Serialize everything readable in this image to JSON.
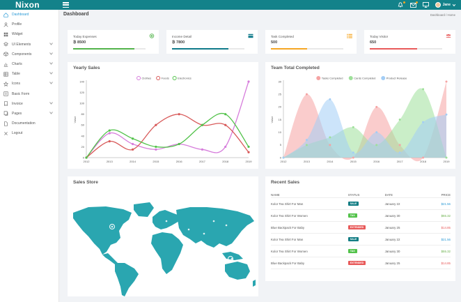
{
  "app": {
    "logo": "Nixon",
    "user_name": "Jane"
  },
  "header": {
    "title": "Dashboard",
    "breadcrumb": "Dashboard / Home"
  },
  "sidebar": {
    "items": [
      {
        "label": "Dashboard",
        "icon": "home-icon",
        "active": true,
        "chevron": false
      },
      {
        "label": "Profile",
        "icon": "user-icon",
        "active": false,
        "chevron": false
      },
      {
        "label": "Widget",
        "icon": "grid-icon",
        "active": false,
        "chevron": false
      },
      {
        "label": "UI Elements",
        "icon": "layers-icon",
        "active": false,
        "chevron": true
      },
      {
        "label": "Components",
        "icon": "cube-icon",
        "active": false,
        "chevron": true
      },
      {
        "label": "Charts",
        "icon": "chart-icon",
        "active": false,
        "chevron": true
      },
      {
        "label": "Table",
        "icon": "table-icon",
        "active": false,
        "chevron": true
      },
      {
        "label": "Icons",
        "icon": "star-icon",
        "active": false,
        "chevron": true
      },
      {
        "label": "Basic Form",
        "icon": "form-icon",
        "active": false,
        "chevron": false
      },
      {
        "label": "Invoice",
        "icon": "invoice-icon",
        "active": false,
        "chevron": true
      },
      {
        "label": "Pages",
        "icon": "pages-icon",
        "active": false,
        "chevron": true
      },
      {
        "label": "Documentation",
        "icon": "doc-icon",
        "active": false,
        "chevron": false
      },
      {
        "label": "Logout",
        "icon": "logout-icon",
        "active": false,
        "chevron": false
      }
    ]
  },
  "stats": [
    {
      "label": "Today Expenses",
      "value": "₿ 8500",
      "icon": "target-icon",
      "color": "#52b34b",
      "progress": 0.85
    },
    {
      "label": "Income Detail",
      "value": "₿ 7800",
      "icon": "wallet-icon",
      "color": "#0f7a8a",
      "progress": 0.78
    },
    {
      "label": "Task Completed",
      "value": "500",
      "icon": "list-icon",
      "color": "#f5a623",
      "progress": 0.5
    },
    {
      "label": "Today Visitor",
      "value": "650",
      "icon": "users-icon",
      "color": "#e85a5a",
      "progress": 0.65
    }
  ],
  "chart_data": [
    {
      "type": "line",
      "title": "Yearly Sales",
      "ylabel": "Value",
      "x": [
        "2012",
        "2013",
        "2014",
        "2015",
        "2016",
        "2017",
        "2018",
        "2019"
      ],
      "yticks": [
        "0",
        "20",
        "40",
        "60",
        "80",
        "100",
        "120",
        "140"
      ],
      "ylim": [
        0,
        140
      ],
      "series": [
        {
          "name": "Clothes",
          "color": "#d67cdb",
          "values": [
            0,
            45,
            25,
            15,
            25,
            15,
            20,
            140
          ]
        },
        {
          "name": "Foods",
          "color": "#d85a5a",
          "values": [
            0,
            30,
            15,
            60,
            80,
            60,
            60,
            10
          ]
        },
        {
          "name": "Electronics",
          "color": "#52c24a",
          "values": [
            0,
            50,
            35,
            20,
            25,
            60,
            80,
            20
          ]
        }
      ],
      "legend": "top-center",
      "grid": false
    },
    {
      "type": "area",
      "title": "Team Total Completed",
      "ylabel": "Value",
      "x": [
        "2012",
        "2013",
        "2014",
        "2015",
        "2016",
        "2017",
        "2018",
        "2019"
      ],
      "yticks": [
        "0",
        "5",
        "10",
        "15",
        "20",
        "25",
        "30"
      ],
      "ylim": [
        0,
        30
      ],
      "series": [
        {
          "name": "Tasks Completed",
          "color": "#f5a3a3",
          "values": [
            0,
            25,
            5,
            0,
            20,
            5,
            0,
            30
          ]
        },
        {
          "name": "Cards Completed",
          "color": "#9ee09a",
          "values": [
            0,
            5,
            8,
            12,
            5,
            15,
            27,
            0
          ]
        },
        {
          "name": "Product Release",
          "color": "#a3cdf5",
          "values": [
            0,
            7,
            23,
            2,
            10,
            2,
            14,
            17
          ]
        }
      ],
      "legend": "top-center",
      "grid": false
    }
  ],
  "map": {
    "title": "Sales Store",
    "color": "#2aa6b0"
  },
  "recent_sales": {
    "title": "Recent Sales",
    "columns": [
      "NAME",
      "STATUS",
      "DATE",
      "PRICE"
    ],
    "rows": [
      {
        "name": "Kolor Tea Shirt For Man",
        "status": "SALE",
        "status_color": "#137d84",
        "date": "January 22",
        "price": "$21.56",
        "price_class": "price-blue"
      },
      {
        "name": "Kolor Tea Shirt For Women",
        "status": "TAX",
        "status_color": "#52c24a",
        "date": "January 30",
        "price": "$55.32",
        "price_class": "price-green"
      },
      {
        "name": "Blue Backpack For Baby",
        "status": "EXTENDED",
        "status_color": "#e85a5a",
        "date": "January 25",
        "price": "$14.85",
        "price_class": "price-red"
      },
      {
        "name": "Kolor Tea Shirt For Man",
        "status": "SALE",
        "status_color": "#137d84",
        "date": "January 22",
        "price": "$21.56",
        "price_class": "price-blue"
      },
      {
        "name": "Kolor Tea Shirt For Women",
        "status": "TAX",
        "status_color": "#52c24a",
        "date": "January 30",
        "price": "$55.32",
        "price_class": "price-green"
      },
      {
        "name": "Blue Backpack For Baby",
        "status": "EXTENDED",
        "status_color": "#e85a5a",
        "date": "January 25",
        "price": "$14.85",
        "price_class": "price-red"
      }
    ]
  }
}
